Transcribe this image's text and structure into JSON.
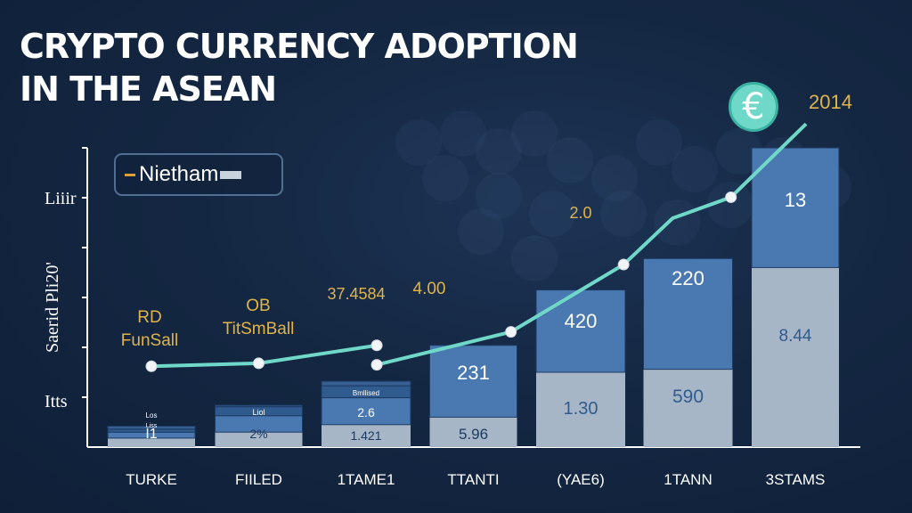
{
  "title_lines": [
    "CRYPTO CURRENCY ADOPTION",
    "IN THE ASEAN"
  ],
  "year_label": "2014",
  "badge_symbol": "€",
  "legend": {
    "label": "Nietham"
  },
  "y_labels": {
    "top": "Liiir",
    "middle": "Saerid Pli20'",
    "bottom": "Itts"
  },
  "colors": {
    "background": "#142742",
    "bar_dark": "#2f5b8e",
    "bar_mid": "#4a78b0",
    "bar_light": "#a7b6c6",
    "line": "#6fd8c8",
    "accent": "#e0b44a"
  },
  "chart_data": {
    "type": "bar",
    "title": "CRYPTO CURRENCY ADOPTION IN THE ASEAN",
    "categories": [
      "TURKE",
      "FIILED",
      "1TAME1",
      "TTANTI",
      "(YAE6)",
      "1TANN",
      "3STAMS"
    ],
    "series": [
      {
        "values": [
          6,
          10,
          15,
          20,
          50,
          52,
          120
        ]
      },
      {
        "values": [
          4,
          11,
          18,
          48,
          55,
          74,
          80
        ]
      },
      {
        "values": [
          2,
          6,
          8,
          0,
          0,
          0,
          0
        ]
      },
      {
        "values": [
          2,
          1,
          3,
          0,
          0,
          0,
          0
        ]
      }
    ],
    "ylim": [
      0,
      200
    ],
    "bar_labels": [
      [
        "I1",
        "2%",
        "1.421",
        "5.96",
        "1.30",
        "590",
        "8.44"
      ],
      [
        "",
        "",
        "2.6",
        "231",
        "420",
        "220",
        "13"
      ],
      [
        "Los",
        "",
        "Bmllised",
        "",
        "",
        "",
        ""
      ]
    ],
    "tiny_labels": [
      "Liss",
      "Liol"
    ],
    "line_series": {
      "values": [
        54,
        56,
        68,
        55,
        77,
        122,
        167,
        216
      ],
      "categories_index": [
        0,
        1,
        2.1,
        2.1,
        3.35,
        4.4,
        5.4,
        6.1
      ]
    },
    "annotations": [
      {
        "text": "RD"
      },
      {
        "text": "FunSall"
      },
      {
        "text": "OB"
      },
      {
        "text": "TitSmBall"
      },
      {
        "text": "37.4584"
      },
      {
        "text": "4.00"
      },
      {
        "text": "2.0"
      }
    ]
  }
}
